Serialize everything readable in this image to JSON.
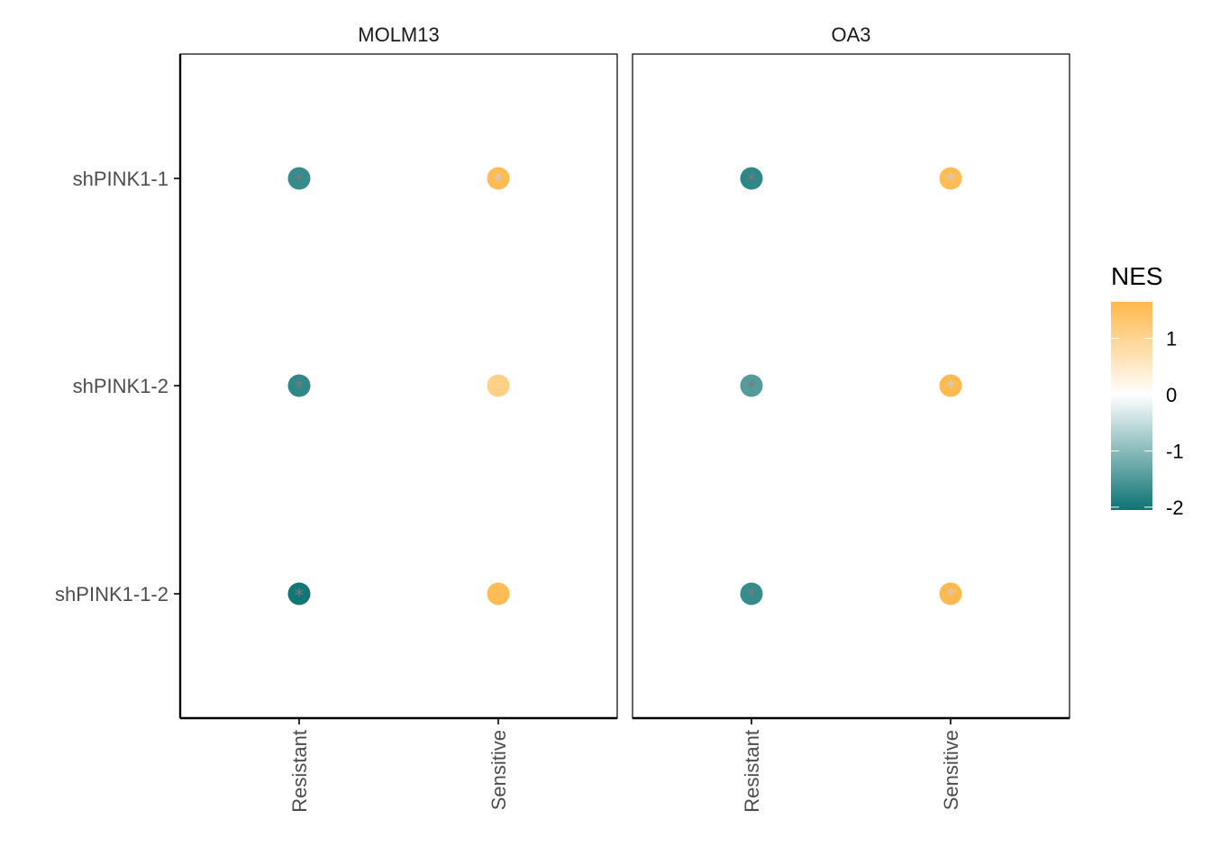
{
  "chart_data": {
    "type": "scatter",
    "facets": [
      "MOLM13",
      "OA3"
    ],
    "categories": [
      "Resistant",
      "Sensitive"
    ],
    "rows": [
      "shPINK1-1",
      "shPINK1-2",
      "shPINK1-1-2"
    ],
    "points": [
      {
        "facet": "MOLM13",
        "x": "Resistant",
        "y": "shPINK1-1",
        "nes": -1.7,
        "sig": "*",
        "star_color": "#7a7a7a"
      },
      {
        "facet": "MOLM13",
        "x": "Sensitive",
        "y": "shPINK1-1",
        "nes": 1.55,
        "sig": "*",
        "star_color": "#cccccc"
      },
      {
        "facet": "MOLM13",
        "x": "Resistant",
        "y": "shPINK1-2",
        "nes": -1.75,
        "sig": "*",
        "star_color": "#7a7a7a"
      },
      {
        "facet": "MOLM13",
        "x": "Sensitive",
        "y": "shPINK1-2",
        "nes": 1.1,
        "sig": "",
        "star_color": "#cccccc"
      },
      {
        "facet": "MOLM13",
        "x": "Resistant",
        "y": "shPINK1-1-2",
        "nes": -2.0,
        "sig": "*",
        "star_color": "#7a7a7a"
      },
      {
        "facet": "MOLM13",
        "x": "Sensitive",
        "y": "shPINK1-1-2",
        "nes": 1.55,
        "sig": "",
        "star_color": "#cccccc"
      },
      {
        "facet": "OA3",
        "x": "Resistant",
        "y": "shPINK1-1",
        "nes": -1.75,
        "sig": "*",
        "star_color": "#7a7a7a"
      },
      {
        "facet": "OA3",
        "x": "Sensitive",
        "y": "shPINK1-1",
        "nes": 1.55,
        "sig": "*",
        "star_color": "#cccccc"
      },
      {
        "facet": "OA3",
        "x": "Resistant",
        "y": "shPINK1-2",
        "nes": -1.45,
        "sig": "*",
        "star_color": "#7a7a7a"
      },
      {
        "facet": "OA3",
        "x": "Sensitive",
        "y": "shPINK1-2",
        "nes": 1.6,
        "sig": "*",
        "star_color": "#cccccc"
      },
      {
        "facet": "OA3",
        "x": "Resistant",
        "y": "shPINK1-1-2",
        "nes": -1.7,
        "sig": "*",
        "star_color": "#7a7a7a"
      },
      {
        "facet": "OA3",
        "x": "Sensitive",
        "y": "shPINK1-1-2",
        "nes": 1.6,
        "sig": "*",
        "star_color": "#cccccc"
      }
    ],
    "legend": {
      "title": "NES",
      "ticks": [
        1,
        0,
        -1,
        -2
      ],
      "tick_labels": [
        "1",
        "0",
        "-1",
        "-2"
      ],
      "range": [
        -2.05,
        1.65
      ],
      "placement": "right",
      "low_color": "#0d7373",
      "mid_color": "#ffffff",
      "high_color": "#ffb84a"
    },
    "xlabel": "",
    "ylabel": "",
    "grid": false
  }
}
